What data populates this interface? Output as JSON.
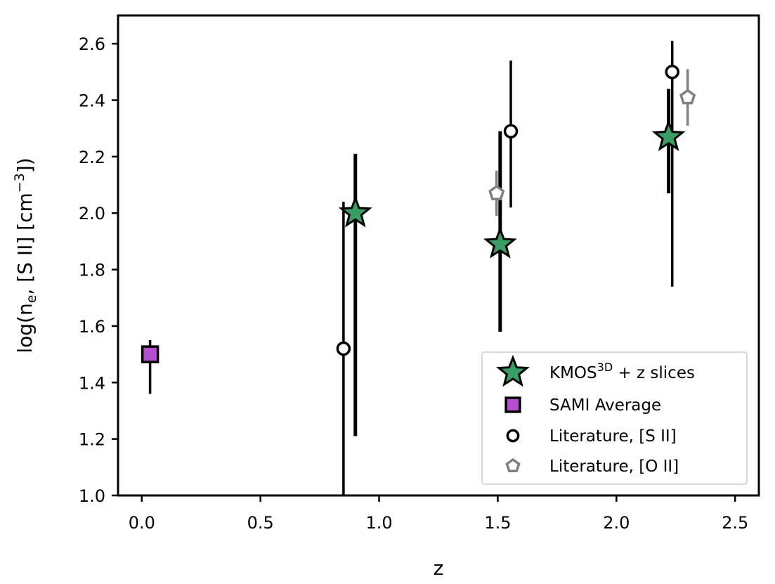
{
  "chart_data": {
    "type": "scatter",
    "xlabel": "z",
    "ylabel": "log(n_e, [S II] [cm^-3])",
    "xlim": [
      -0.1,
      2.6
    ],
    "ylim": [
      1.0,
      2.7
    ],
    "xticks": [
      "0.0",
      "0.5",
      "1.0",
      "1.5",
      "2.0",
      "2.5"
    ],
    "yticks": [
      "1.0",
      "1.2",
      "1.4",
      "1.6",
      "1.8",
      "2.0",
      "2.2",
      "2.4",
      "2.6"
    ],
    "grid": false,
    "legend_position": "lower-right",
    "series": [
      {
        "name": "KMOS3D + z slices",
        "marker": "star",
        "color": "#3a9e64",
        "edge": "#000000",
        "errorbar_color": "#000000",
        "points": [
          {
            "x": 0.9,
            "y": 2.0,
            "ylo": 1.21,
            "yhi": 2.21
          },
          {
            "x": 1.51,
            "y": 1.89,
            "ylo": 1.58,
            "yhi": 2.29
          },
          {
            "x": 2.22,
            "y": 2.27,
            "ylo": 2.07,
            "yhi": 2.44
          }
        ]
      },
      {
        "name": "SAMI Average",
        "marker": "square",
        "color": "#b44fd0",
        "edge": "#000000",
        "errorbar_color": "#000000",
        "points": [
          {
            "x": 0.035,
            "y": 1.5,
            "ylo": 1.36,
            "yhi": 1.55
          }
        ]
      },
      {
        "name": "Literature, [S II]",
        "marker": "circle",
        "color": "#ffffff",
        "edge": "#000000",
        "errorbar_color": "#000000",
        "points": [
          {
            "x": 0.85,
            "y": 1.52,
            "ylo": 1.0,
            "yhi": 2.04
          },
          {
            "x": 1.555,
            "y": 2.29,
            "ylo": 2.02,
            "yhi": 2.54
          },
          {
            "x": 2.235,
            "y": 2.5,
            "ylo": 1.74,
            "yhi": 2.61
          }
        ]
      },
      {
        "name": "Literature, [O II]",
        "marker": "pentagon",
        "color": "#ffffff",
        "edge": "#808080",
        "errorbar_color": "#808080",
        "points": [
          {
            "x": 1.495,
            "y": 2.07,
            "ylo": 1.99,
            "yhi": 2.15
          },
          {
            "x": 2.3,
            "y": 2.41,
            "ylo": 2.31,
            "yhi": 2.51
          }
        ]
      }
    ],
    "legend": {
      "entries": [
        {
          "label": "KMOS",
          "sup": "3D",
          "suffix": "+  z slices",
          "marker": "star"
        },
        {
          "label": "SAMI Average",
          "marker": "square"
        },
        {
          "label": "Literature, [S II]",
          "marker": "circle"
        },
        {
          "label": "Literature, [O II]",
          "marker": "pentagon"
        }
      ]
    }
  }
}
